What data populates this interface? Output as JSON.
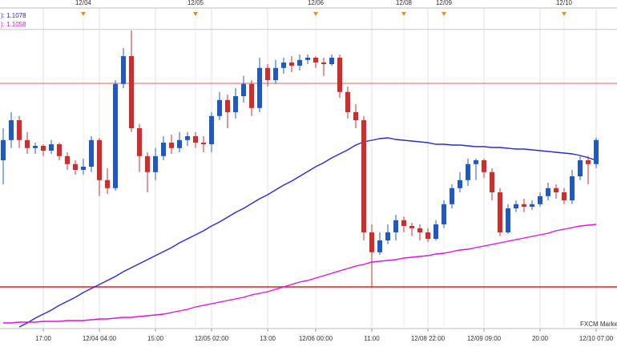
{
  "chart_data": {
    "type": "candlestick",
    "categories": [
      null,
      null,
      null,
      null,
      null,
      "17:00",
      null,
      null,
      null,
      null,
      null,
      null,
      "12/04 04:00",
      null,
      null,
      null,
      null,
      null,
      null,
      "15:00",
      null,
      null,
      null,
      null,
      null,
      null,
      "12/05 02:00",
      null,
      null,
      null,
      null,
      null,
      null,
      "13:00",
      null,
      null,
      null,
      null,
      null,
      "12/06 00:00",
      null,
      null,
      null,
      null,
      null,
      null,
      "11:00",
      null,
      null,
      null,
      null,
      null,
      null,
      "12/08 22:00",
      null,
      null,
      null,
      null,
      null,
      null,
      "12/09 09:00",
      null,
      null,
      null,
      null,
      null,
      null,
      "20:00",
      null,
      null,
      null,
      null,
      null,
      null,
      "12/10 07:00"
    ],
    "date_labels": [
      null,
      null,
      null,
      null,
      null,
      null,
      null,
      null,
      null,
      null,
      "12/04",
      null,
      null,
      null,
      null,
      null,
      null,
      null,
      null,
      null,
      null,
      null,
      null,
      null,
      "12/05",
      null,
      null,
      null,
      null,
      null,
      null,
      null,
      null,
      null,
      null,
      null,
      null,
      null,
      null,
      "12/06",
      null,
      null,
      null,
      null,
      null,
      null,
      null,
      null,
      null,
      null,
      "12/08",
      null,
      null,
      null,
      null,
      "12/09",
      null,
      null,
      null,
      null,
      null,
      null,
      null,
      null,
      null,
      null,
      null,
      null,
      null,
      null,
      "12/10",
      null,
      null,
      null,
      null
    ],
    "open": [
      1.1078,
      1.10843,
      1.10905,
      1.10843,
      1.10818,
      1.10825,
      1.1081,
      1.1083,
      1.10793,
      1.10768,
      1.1075,
      1.1076,
      1.10843,
      1.10718,
      1.10693,
      1.11018,
      1.11105,
      1.1088,
      1.10793,
      1.10743,
      1.10793,
      1.10835,
      1.10818,
      1.10843,
      1.10855,
      1.10835,
      1.1083,
      1.10918,
      1.10968,
      1.1093,
      1.1098,
      1.11018,
      1.10943,
      1.11068,
      1.1103,
      1.11068,
      1.11085,
      1.11075,
      1.11093,
      1.111,
      1.11085,
      1.1108,
      1.111,
      1.10993,
      1.1093,
      1.10905,
      1.10555,
      1.10493,
      1.1053,
      1.10555,
      1.10593,
      1.10575,
      1.10568,
      1.10555,
      1.10535,
      1.1058,
      1.10643,
      1.10693,
      1.10718,
      1.10768,
      1.1078,
      1.10743,
      1.1068,
      1.10555,
      1.1063,
      1.10643,
      1.10635,
      1.10643,
      1.10668,
      1.10693,
      1.1068,
      1.10655,
      1.1073,
      1.1078,
      1.10768
    ],
    "high": [
      1.1088,
      1.1093,
      1.10918,
      1.10868,
      1.10835,
      1.1083,
      1.10843,
      1.10835,
      1.10805,
      1.1078,
      1.10785,
      1.10855,
      1.1085,
      1.10755,
      1.1103,
      1.1113,
      1.11185,
      1.10893,
      1.10805,
      1.10818,
      1.10855,
      1.1086,
      1.10868,
      1.10868,
      1.10868,
      1.10855,
      1.1093,
      1.10993,
      1.10985,
      1.11005,
      1.11043,
      1.1103,
      1.111,
      1.1108,
      1.11093,
      1.111,
      1.11105,
      1.1111,
      1.1111,
      1.11105,
      1.111,
      1.1111,
      1.1111,
      1.1101,
      1.10955,
      1.10918,
      1.1058,
      1.10555,
      1.1058,
      1.1061,
      1.10605,
      1.10585,
      1.1058,
      1.10568,
      1.10593,
      1.10655,
      1.10705,
      1.10743,
      1.10785,
      1.10785,
      1.10785,
      1.10755,
      1.10693,
      1.10643,
      1.10655,
      1.1066,
      1.10655,
      1.1068,
      1.1071,
      1.10705,
      1.10693,
      1.1075,
      1.10793,
      1.10793,
      1.1085
    ],
    "low": [
      1.10705,
      1.10818,
      1.10818,
      1.108,
      1.108,
      1.10793,
      1.108,
      1.1078,
      1.1075,
      1.10735,
      1.10735,
      1.10743,
      1.10668,
      1.10675,
      1.10685,
      1.11005,
      1.10868,
      1.10743,
      1.1068,
      1.10718,
      1.1078,
      1.108,
      1.10805,
      1.10825,
      1.10818,
      1.10805,
      1.10805,
      1.10905,
      1.1088,
      1.1091,
      1.1096,
      1.10918,
      1.1093,
      1.1101,
      1.11018,
      1.1105,
      1.11055,
      1.1106,
      1.1108,
      1.11068,
      1.11043,
      1.11075,
      1.10975,
      1.1091,
      1.1088,
      1.1053,
      1.10385,
      1.10485,
      1.10518,
      1.1053,
      1.10555,
      1.10543,
      1.1053,
      1.10525,
      1.1053,
      1.10568,
      1.1063,
      1.1068,
      1.107,
      1.10718,
      1.10725,
      1.10655,
      1.10543,
      1.1055,
      1.10618,
      1.10618,
      1.10625,
      1.10635,
      1.10655,
      1.1066,
      1.10643,
      1.10643,
      1.10718,
      1.10705,
      1.10755
    ],
    "close": [
      1.10843,
      1.10905,
      1.10843,
      1.10818,
      1.10825,
      1.1081,
      1.1083,
      1.10793,
      1.10768,
      1.1075,
      1.1076,
      1.10843,
      1.10718,
      1.10693,
      1.11018,
      1.11105,
      1.1088,
      1.10793,
      1.10743,
      1.10793,
      1.10835,
      1.10818,
      1.10843,
      1.10855,
      1.10835,
      1.1083,
      1.10918,
      1.10968,
      1.1093,
      1.1098,
      1.11018,
      1.10943,
      1.11068,
      1.1103,
      1.11068,
      1.11085,
      1.11075,
      1.11093,
      1.111,
      1.11085,
      1.1108,
      1.111,
      1.10993,
      1.1093,
      1.10905,
      1.10555,
      1.10493,
      1.1053,
      1.10555,
      1.10593,
      1.10575,
      1.10568,
      1.10555,
      1.10535,
      1.1058,
      1.10643,
      1.10693,
      1.10718,
      1.10768,
      1.1078,
      1.10743,
      1.1068,
      1.10555,
      1.1063,
      1.10643,
      1.10635,
      1.10643,
      1.10668,
      1.10693,
      1.1068,
      1.10655,
      1.1073,
      1.1078,
      1.10768,
      1.10843
    ],
    "up_color": "#1f58c8",
    "down_color": "#d42a2a",
    "series": [
      {
        "name": "): 1.1078",
        "color": "#2b2bd4",
        "values": [
          null,
          null,
          1.1026,
          1.102725,
          1.102875,
          1.103,
          1.103125,
          1.103275,
          1.1034,
          1.103525,
          1.103675,
          1.1038,
          1.103925,
          1.10405,
          1.104175,
          1.104325,
          1.10445,
          1.104575,
          1.1047,
          1.104825,
          1.10495,
          1.105075,
          1.105225,
          1.10535,
          1.105475,
          1.1056,
          1.10575,
          1.105875,
          1.106025,
          1.106175,
          1.1063,
          1.10645,
          1.1066,
          1.106725,
          1.106875,
          1.107025,
          1.10715,
          1.1073,
          1.10745,
          1.1076,
          1.107725,
          1.107875,
          1.108,
          1.108125,
          1.108275,
          1.108375,
          1.108425,
          1.108475,
          1.1085,
          1.10845,
          1.108425,
          1.1084,
          1.108375,
          1.10835,
          1.1083,
          1.1083,
          1.108275,
          1.108275,
          1.10825,
          1.108225,
          1.108225,
          1.1082,
          1.1082,
          1.108175,
          1.10815,
          1.10815,
          1.108125,
          1.1081,
          1.108075,
          1.10805,
          1.108025,
          1.108,
          1.10795,
          1.10788,
          1.1078
        ]
      },
      {
        "name": "): 1.1058",
        "color": "#e010e0",
        "values": [
          1.102725,
          1.102725,
          1.10275,
          1.10275,
          1.10275,
          1.102775,
          1.102775,
          1.102775,
          1.1028,
          1.1028,
          1.1028,
          1.102825,
          1.10285,
          1.10285,
          1.102875,
          1.1029,
          1.1029,
          1.102925,
          1.10295,
          1.102975,
          1.103,
          1.10305,
          1.1031,
          1.10315,
          1.103225,
          1.103275,
          1.103325,
          1.103375,
          1.103425,
          1.103475,
          1.103525,
          1.1036,
          1.10365,
          1.1037,
          1.103775,
          1.10385,
          1.103925,
          1.104,
          1.10405,
          1.104125,
          1.1042,
          1.104275,
          1.10435,
          1.104425,
          1.1045,
          1.10455,
          1.104625,
          1.10465,
          1.104675,
          1.1047,
          1.10475,
          1.104775,
          1.1048,
          1.104825,
          1.104875,
          1.1049,
          1.10495,
          1.105,
          1.105025,
          1.105075,
          1.105125,
          1.105175,
          1.105225,
          1.105275,
          1.105325,
          1.105375,
          1.105425,
          1.105475,
          1.105525,
          1.1056,
          1.10565,
          1.1057,
          1.10575,
          1.105775,
          1.1058
        ]
      }
    ],
    "levels": [
      1.11188,
      1.1102,
      1.10385
    ],
    "level_colors": [
      "#c8c8c8",
      "#e06060",
      "#e02020"
    ],
    "ylim": [
      1.10255,
      1.11255
    ],
    "grid": true,
    "watermark": "FXCM Market"
  }
}
